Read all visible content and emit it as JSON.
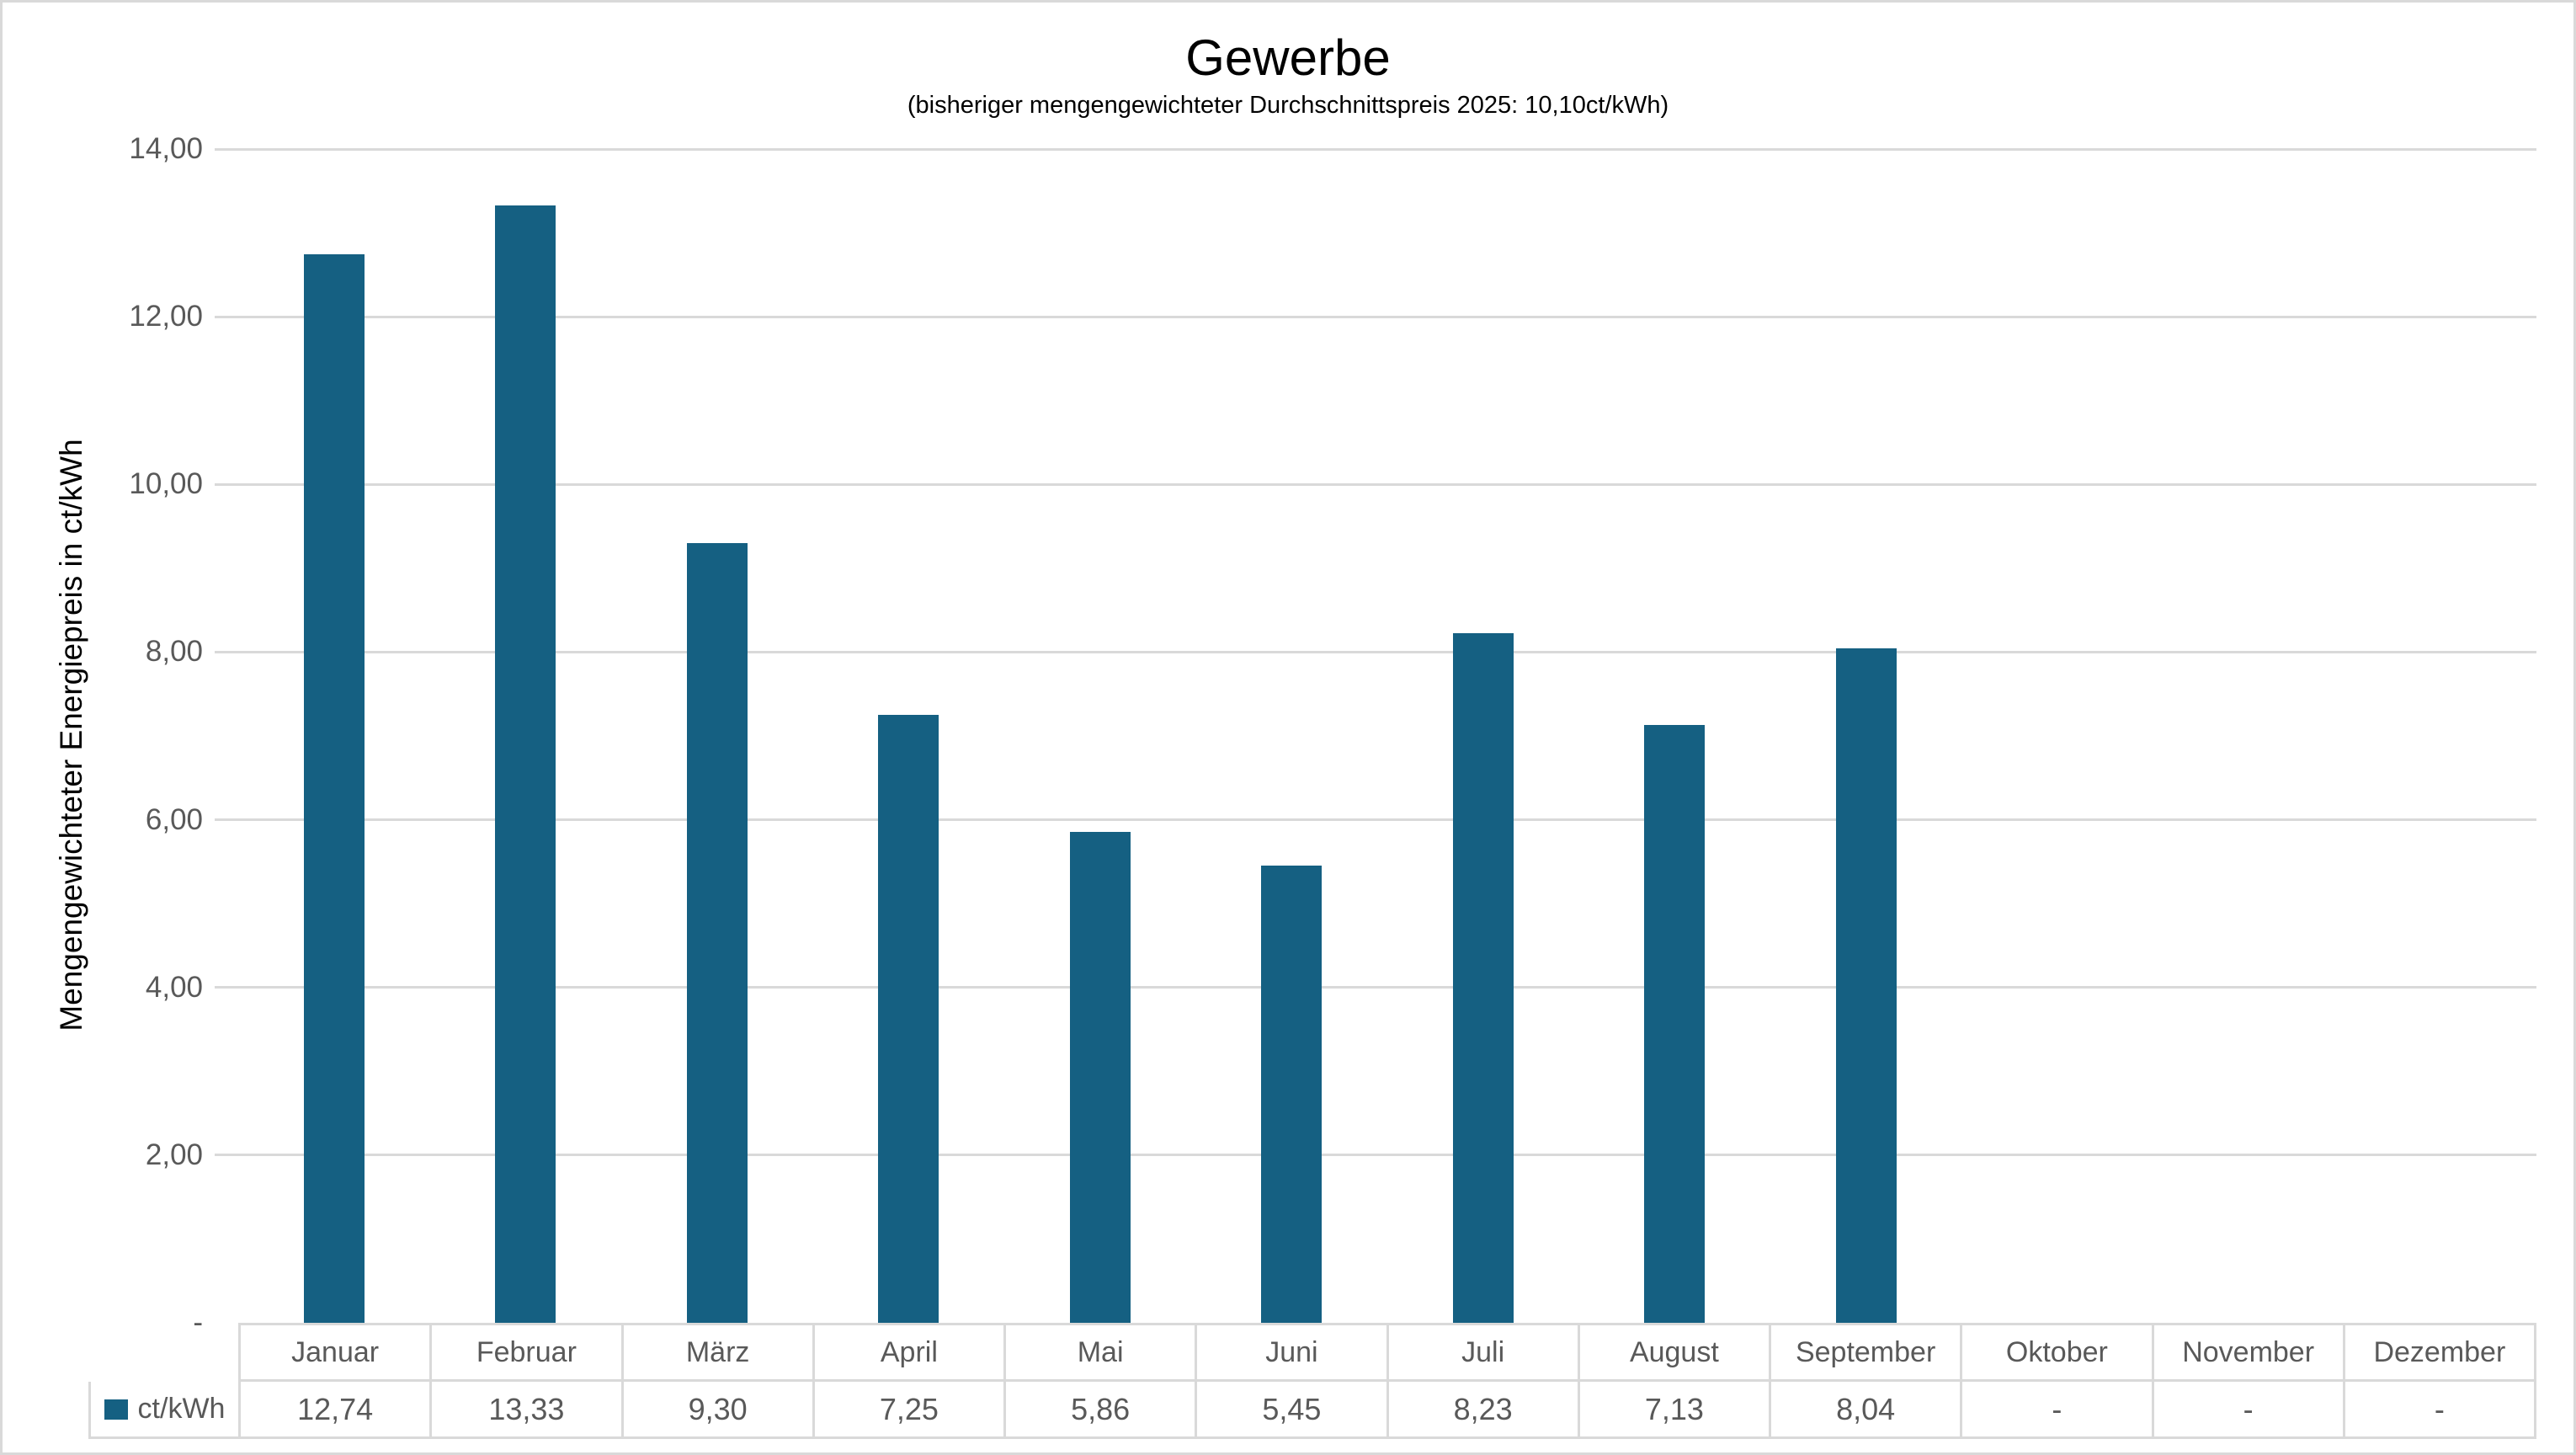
{
  "title": "Gewerbe",
  "subtitle": "(bisheriger mengengewichteter Durchschnittspreis 2025: 10,10ct/kWh)",
  "y_axis": {
    "title": "Mengengewichteter Energiepreis in ct/kWh",
    "tick_labels": [
      "14,00",
      "12,00",
      "10,00",
      "8,00",
      "6,00",
      "4,00",
      "2,00",
      "-"
    ],
    "max": 14,
    "tick_step": 2
  },
  "legend": {
    "label": "ct/kWh"
  },
  "colors": {
    "bar": "#156082",
    "grid": "#D9D9D9",
    "text_gray": "#595959",
    "text_black": "#000000"
  },
  "chart_data": {
    "type": "bar",
    "title": "Gewerbe",
    "subtitle": "(bisheriger mengengewichteter Durchschnittspreis 2025: 10,10ct/kWh)",
    "series_name": "ct/kWh",
    "categories": [
      "Januar",
      "Februar",
      "März",
      "April",
      "Mai",
      "Juni",
      "Juli",
      "August",
      "September",
      "Oktober",
      "November",
      "Dezember"
    ],
    "values": [
      12.74,
      13.33,
      9.3,
      7.25,
      5.86,
      5.45,
      8.23,
      7.13,
      8.04,
      null,
      null,
      null
    ],
    "display_values": [
      "12,74",
      "13,33",
      "9,30",
      "7,25",
      "5,86",
      "5,45",
      "8,23",
      "7,13",
      "8,04",
      "-",
      "-",
      "-"
    ],
    "xlabel": "",
    "ylabel": "Mengengewichteter Energiepreis in ct/kWh",
    "ylim": [
      0,
      14
    ],
    "grid": true,
    "legend_position": "table-left",
    "bar_color": "#156082"
  }
}
